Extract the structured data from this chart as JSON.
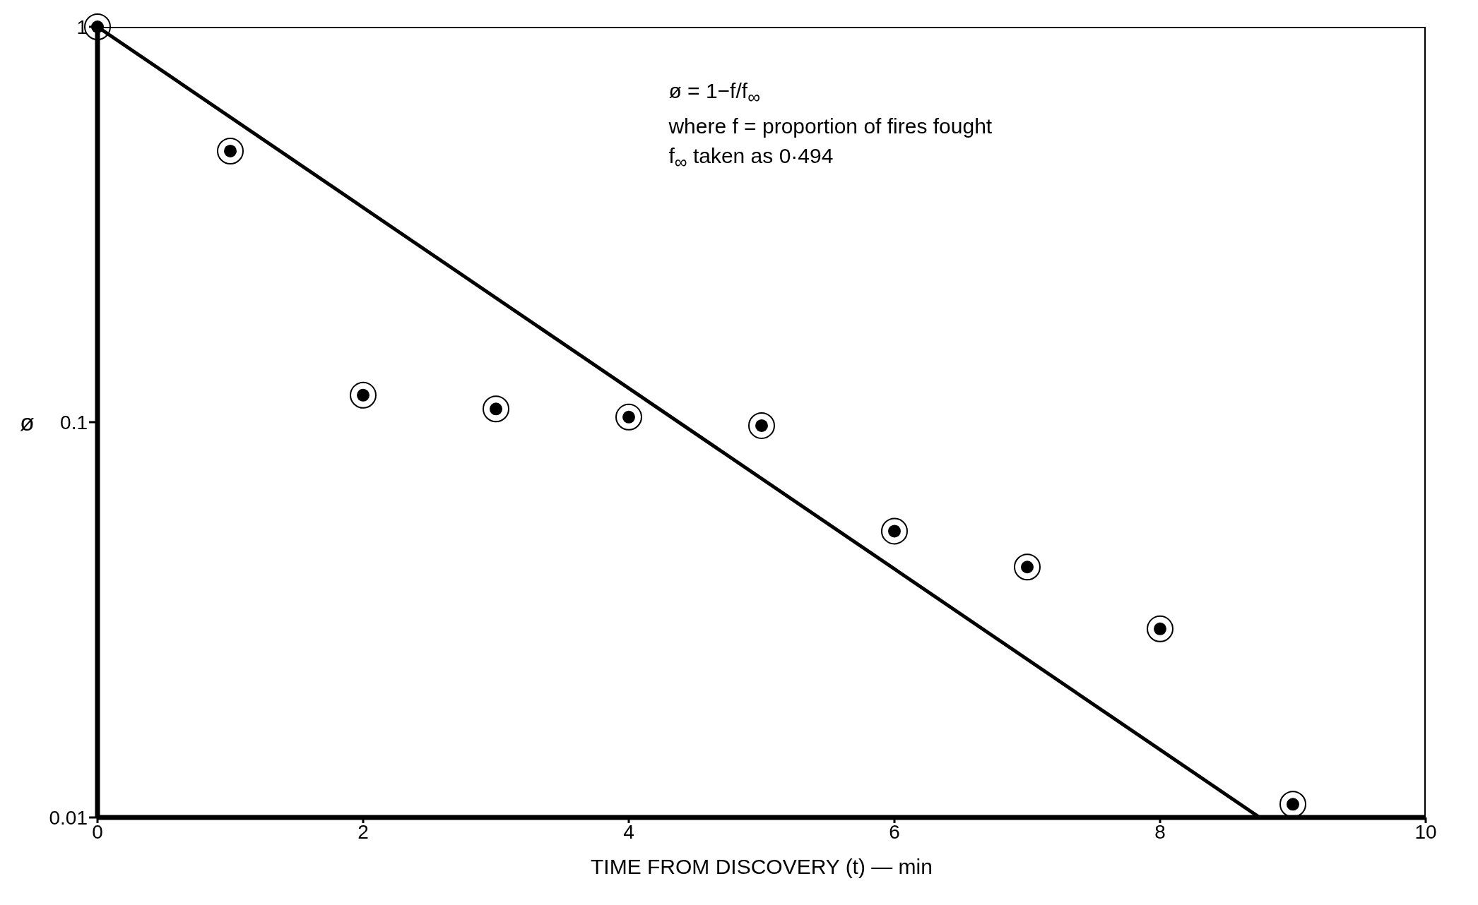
{
  "chart_data": {
    "type": "scatter",
    "xlabel": "TIME FROM DISCOVERY (t) — min",
    "ylabel": "ø",
    "annotations": [
      "ø = 1−f/f$_{∞}$",
      "where f = proportion of fires fought",
      "f$_{∞}$ taken as 0·494"
    ],
    "x": [
      0,
      1,
      2,
      3,
      4,
      5,
      6,
      7,
      8,
      9
    ],
    "series": [
      {
        "color": "#000000",
        "values": [
          1,
          0.485,
          0.117,
          0.108,
          0.103,
          0.098,
          0.053,
          0.043,
          0.03,
          0.0108
        ]
      },
      {
        "type": "line",
        "color": "#000000",
        "x": [
          0,
          8.75
        ],
        "values": [
          1,
          0.01
        ]
      }
    ],
    "xlim": [
      0,
      10
    ],
    "xticks": [
      0,
      2,
      4,
      6,
      8,
      10
    ],
    "ylim": [
      0.01,
      1
    ],
    "yticks": [
      {
        "value": 0.01,
        "label": "0.01"
      },
      {
        "value": 0.1,
        "label": "0.1"
      },
      {
        "value": 1,
        "label": "1"
      }
    ],
    "log": true,
    "grid": false,
    "marker": "circle",
    "line_style": "solid"
  }
}
